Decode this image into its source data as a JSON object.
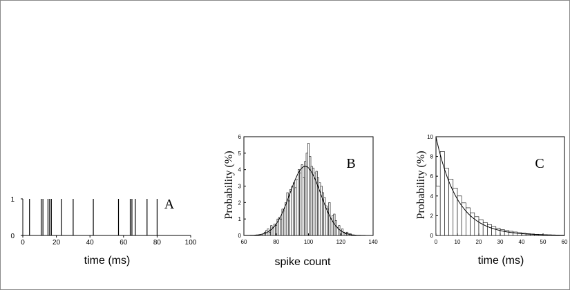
{
  "chart_data": [
    {
      "type": "spike-train",
      "panel_label": "A",
      "xlabel": "time (ms)",
      "ylabel": "",
      "xlim": [
        0,
        100
      ],
      "ylim": [
        0,
        1
      ],
      "xticks": [
        0,
        20,
        40,
        60,
        80,
        100
      ],
      "yticks": [
        0,
        1
      ],
      "spike_times": [
        4,
        11,
        12,
        15,
        16,
        17,
        23,
        30,
        42,
        57,
        64,
        65,
        67,
        74,
        80
      ]
    },
    {
      "type": "bar",
      "panel_label": "B",
      "xlabel": "spike count",
      "ylabel": "Probability (%)",
      "xlim": [
        60,
        140
      ],
      "ylim": [
        0,
        6
      ],
      "xticks": [
        60,
        80,
        100,
        120,
        140
      ],
      "yticks": [
        0,
        1,
        2,
        3,
        4,
        5,
        6
      ],
      "bin_width": 1,
      "bars_x": [
        72,
        73,
        74,
        75,
        76,
        77,
        78,
        79,
        80,
        81,
        82,
        83,
        84,
        85,
        86,
        87,
        88,
        89,
        90,
        91,
        92,
        93,
        94,
        95,
        96,
        97,
        98,
        99,
        100,
        101,
        102,
        103,
        104,
        105,
        106,
        107,
        108,
        109,
        110,
        111,
        112,
        113,
        114,
        115,
        116,
        117,
        118,
        119,
        120,
        121,
        122,
        123,
        124,
        125,
        126
      ],
      "bars_y": [
        0.1,
        0.2,
        0.3,
        0.4,
        0.2,
        0.6,
        0.5,
        0.7,
        0.6,
        1.0,
        1.1,
        1.0,
        1.6,
        1.5,
        2.0,
        2.6,
        2.1,
        2.8,
        3.0,
        3.2,
        2.9,
        3.4,
        4.0,
        3.8,
        4.3,
        3.5,
        4.5,
        5.0,
        5.6,
        4.8,
        4.2,
        4.1,
        3.8,
        3.9,
        3.5,
        3.2,
        3.0,
        2.6,
        2.3,
        1.8,
        1.6,
        2.0,
        1.0,
        1.2,
        1.3,
        0.9,
        0.5,
        0.6,
        0.3,
        0.4,
        0.2,
        0.1,
        0.2,
        0.1,
        0.1
      ],
      "fit_curve": {
        "mean": 98,
        "sd": 9.5,
        "peak": 4.2
      }
    },
    {
      "type": "bar",
      "panel_label": "C",
      "xlabel": "time (ms)",
      "ylabel": "Probability (%)",
      "xlim": [
        0,
        60
      ],
      "ylim": [
        0,
        10
      ],
      "xticks": [
        0,
        10,
        20,
        30,
        40,
        50,
        60
      ],
      "yticks": [
        0,
        2,
        4,
        6,
        8,
        10
      ],
      "bin_width": 2,
      "bars_x": [
        0,
        2,
        4,
        6,
        8,
        10,
        12,
        14,
        16,
        18,
        20,
        22,
        24,
        26,
        28,
        30,
        32,
        34,
        36,
        38,
        40,
        42,
        44,
        46,
        48,
        50,
        52,
        54
      ],
      "bars_y": [
        5.0,
        8.5,
        6.8,
        5.7,
        4.8,
        4.0,
        3.3,
        2.8,
        2.3,
        1.9,
        1.6,
        1.3,
        1.1,
        0.9,
        0.75,
        0.6,
        0.5,
        0.42,
        0.35,
        0.28,
        0.23,
        0.19,
        0.15,
        0.12,
        0.1,
        0.08,
        0.06,
        0.05
      ],
      "fit_curve": {
        "a0": 10,
        "tau": 10
      }
    }
  ]
}
